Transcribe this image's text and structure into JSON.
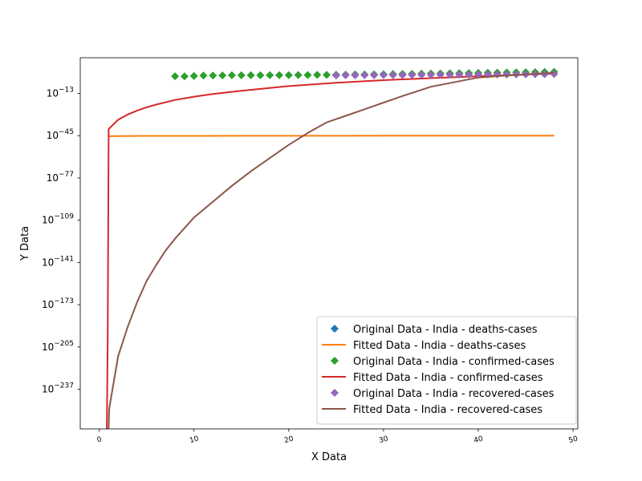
{
  "chart_data": {
    "type": "line",
    "title": "",
    "xlabel": "X Data",
    "ylabel": "Y Data",
    "xlim": [
      -2.0,
      50.5
    ],
    "ylim_exponent": [
      -267,
      14
    ],
    "yscale": "log",
    "grid": false,
    "legend_position": "lower-right",
    "xticks": [
      0,
      10,
      20,
      30,
      40,
      50
    ],
    "yticks": [
      {
        "exp": -13,
        "label": "10^-13"
      },
      {
        "exp": -45,
        "label": "10^-45"
      },
      {
        "exp": -77,
        "label": "10^-77"
      },
      {
        "exp": -109,
        "label": "10^-109"
      },
      {
        "exp": -141,
        "label": "10^-141"
      },
      {
        "exp": -173,
        "label": "10^-173"
      },
      {
        "exp": -205,
        "label": "10^-205"
      },
      {
        "exp": -237,
        "label": "10^-237"
      }
    ],
    "series": [
      {
        "name": "Original Data - India - deaths-cases",
        "kind": "markers",
        "marker": "diamond",
        "color": "#1f77b4",
        "x": [],
        "log10_y": []
      },
      {
        "name": "Fitted Data - India - deaths-cases",
        "kind": "line",
        "color": "#ff7f0e",
        "x": [
          1,
          2,
          5,
          10,
          15,
          20,
          25,
          30,
          35,
          40,
          45,
          48
        ],
        "log10_y": [
          -45.4,
          -45.3,
          -45.2,
          -45.15,
          -45.1,
          -45.1,
          -45.1,
          -45.05,
          -45.05,
          -45.05,
          -45.0,
          -45.0
        ]
      },
      {
        "name": "Original Data - India - confirmed-cases",
        "kind": "markers",
        "marker": "diamond",
        "color": "#2ca02c",
        "x": [
          8,
          9,
          10,
          11,
          12,
          13,
          14,
          15,
          16,
          17,
          18,
          19,
          20,
          21,
          22,
          23,
          24,
          25,
          26,
          27,
          28,
          29,
          30,
          31,
          32,
          33,
          34,
          35,
          36,
          37,
          38,
          39,
          40,
          41,
          42,
          43,
          44,
          45,
          46,
          47,
          48
        ],
        "log10_y": [
          0.0,
          -0.1,
          0.2,
          0.5,
          0.5,
          0.6,
          0.7,
          0.7,
          0.7,
          0.7,
          0.8,
          0.8,
          0.8,
          0.9,
          0.9,
          1.0,
          1.0,
          1.1,
          1.2,
          1.3,
          1.3,
          1.4,
          1.5,
          1.6,
          1.7,
          1.8,
          1.9,
          2.0,
          2.1,
          2.2,
          2.3,
          2.4,
          2.5,
          2.6,
          2.7,
          2.8,
          2.9,
          3.0,
          3.1,
          3.2,
          3.3
        ]
      },
      {
        "name": "Fitted Data - India - confirmed-cases",
        "kind": "line",
        "color": "#d62728",
        "x": [
          0.8,
          0.9,
          1,
          2,
          3,
          4,
          5,
          6,
          8,
          10,
          12,
          15,
          20,
          25,
          30,
          35,
          40,
          45,
          48
        ],
        "log10_y": [
          -267,
          -200,
          -40,
          -33,
          -29,
          -26,
          -23.5,
          -21.5,
          -18,
          -15.5,
          -13.5,
          -11,
          -7.5,
          -5,
          -3,
          -1.5,
          0,
          1.2,
          2.0
        ]
      },
      {
        "name": "Original Data - India - recovered-cases",
        "kind": "markers",
        "marker": "diamond",
        "color": "#9467bd",
        "x": [
          25,
          26,
          27,
          28,
          29,
          30,
          31,
          32,
          33,
          34,
          35,
          36,
          37,
          38,
          39,
          40,
          41,
          42,
          43,
          44,
          45,
          46,
          47,
          48
        ],
        "log10_y": [
          0.6,
          0.7,
          0.7,
          0.8,
          0.8,
          0.9,
          0.9,
          0.9,
          1.0,
          1.0,
          1.1,
          1.1,
          1.1,
          1.2,
          1.2,
          1.2,
          1.3,
          1.3,
          1.3,
          1.4,
          1.4,
          1.5,
          1.5,
          1.6
        ]
      },
      {
        "name": "Fitted Data - India - recovered-cases",
        "kind": "line",
        "color": "#8c564b",
        "x": [
          1.0,
          1.05,
          2,
          3,
          4,
          5,
          6,
          7,
          8,
          9,
          10,
          12,
          14,
          16,
          18,
          20,
          22,
          23,
          24,
          26,
          28,
          30,
          32,
          35,
          40,
          45,
          48
        ],
        "log10_y": [
          -267,
          -252,
          -212,
          -190,
          -171,
          -155,
          -143,
          -132,
          -123,
          -115,
          -107,
          -95,
          -83,
          -72,
          -62,
          -52,
          -43,
          -39,
          -35,
          -30,
          -25,
          -20,
          -15,
          -8,
          -1,
          1.5,
          2.5
        ]
      }
    ]
  }
}
